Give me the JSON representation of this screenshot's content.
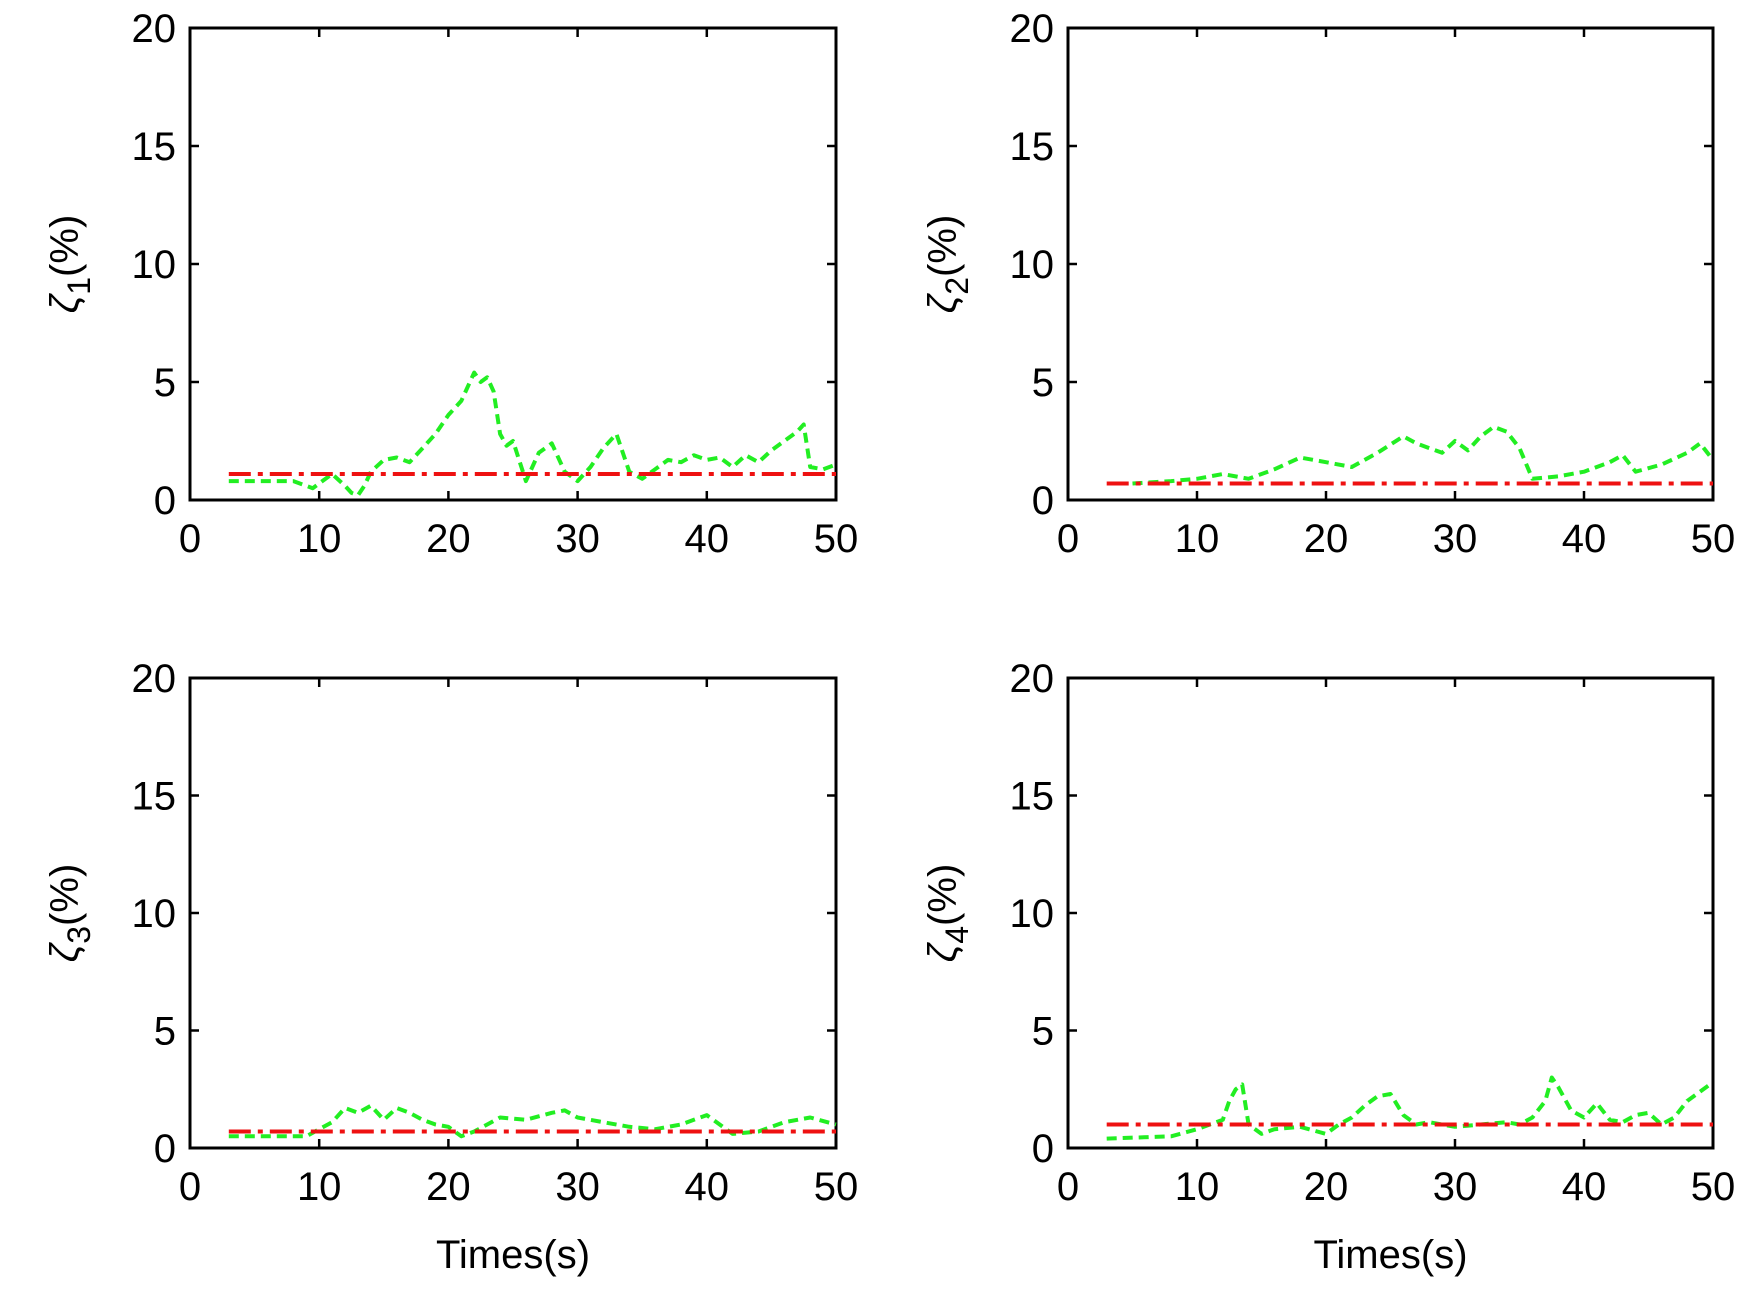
{
  "chart_data": [
    {
      "type": "line",
      "ylabel": "ζ1(%)",
      "ylabel_symbol": "ζ",
      "ylabel_sub": "1",
      "ylabel_unit": "(%)",
      "xlabel": "",
      "xlim": [
        0,
        50
      ],
      "ylim": [
        0,
        20
      ],
      "xticks": [
        0,
        10,
        20,
        30,
        40,
        50
      ],
      "yticks": [
        0,
        5,
        10,
        15,
        20
      ],
      "grid": false,
      "series": [
        {
          "color": "#22ee22",
          "style": "dashed",
          "x": [
            3,
            8,
            9.5,
            11,
            12,
            12.5,
            13,
            13.5,
            14,
            15,
            16,
            17,
            18,
            19,
            20,
            21,
            22,
            22.5,
            23,
            23.5,
            24,
            24.5,
            25,
            26,
            27,
            28,
            29,
            30,
            31,
            32,
            33,
            34,
            35,
            36,
            37,
            38,
            39,
            40,
            41,
            42,
            43,
            44,
            45,
            46,
            47,
            47.5,
            48,
            49,
            50
          ],
          "y": [
            0.8,
            0.8,
            0.5,
            1.1,
            0.6,
            0.3,
            0.2,
            0.6,
            1.2,
            1.7,
            1.8,
            1.6,
            2.2,
            2.8,
            3.6,
            4.2,
            5.4,
            5.0,
            5.2,
            4.6,
            2.8,
            2.3,
            2.5,
            0.8,
            2.0,
            2.4,
            1.2,
            0.8,
            1.4,
            2.2,
            2.8,
            1.2,
            0.9,
            1.3,
            1.7,
            1.6,
            1.9,
            1.7,
            1.8,
            1.4,
            1.9,
            1.6,
            2.1,
            2.5,
            2.9,
            3.2,
            1.4,
            1.3,
            1.5
          ]
        },
        {
          "color": "#ee1111",
          "style": "dashdot",
          "x": [
            3,
            50
          ],
          "y": [
            1.1,
            1.1
          ]
        }
      ]
    },
    {
      "type": "line",
      "ylabel": "ζ2(%)",
      "ylabel_symbol": "ζ",
      "ylabel_sub": "2",
      "ylabel_unit": "(%)",
      "xlabel": "",
      "xlim": [
        0,
        50
      ],
      "ylim": [
        0,
        20
      ],
      "xticks": [
        0,
        10,
        20,
        30,
        40,
        50
      ],
      "yticks": [
        0,
        5,
        10,
        15,
        20
      ],
      "grid": false,
      "series": [
        {
          "color": "#22ee22",
          "style": "dashed",
          "x": [
            5,
            8,
            10,
            12,
            14,
            16,
            18,
            20,
            22,
            24,
            26,
            27,
            28,
            29,
            30,
            31,
            32,
            33,
            34,
            35,
            36,
            38,
            40,
            42,
            43,
            44,
            46,
            48,
            49,
            50
          ],
          "y": [
            0.7,
            0.8,
            0.9,
            1.1,
            0.9,
            1.3,
            1.8,
            1.6,
            1.4,
            2.0,
            2.7,
            2.4,
            2.2,
            2.0,
            2.5,
            2.1,
            2.7,
            3.1,
            2.9,
            2.2,
            0.9,
            1.0,
            1.2,
            1.6,
            1.9,
            1.2,
            1.5,
            2.0,
            2.4,
            1.7
          ]
        },
        {
          "color": "#ee1111",
          "style": "dashdot",
          "x": [
            3,
            50
          ],
          "y": [
            0.7,
            0.7
          ]
        }
      ]
    },
    {
      "type": "line",
      "ylabel": "ζ3(%)",
      "ylabel_symbol": "ζ",
      "ylabel_sub": "3",
      "ylabel_unit": "(%)",
      "xlabel": "Times(s)",
      "xlim": [
        0,
        50
      ],
      "ylim": [
        0,
        20
      ],
      "xticks": [
        0,
        10,
        20,
        30,
        40,
        50
      ],
      "yticks": [
        0,
        5,
        10,
        15,
        20
      ],
      "grid": false,
      "series": [
        {
          "color": "#22ee22",
          "style": "dashed",
          "x": [
            3,
            9,
            10,
            11,
            12,
            13,
            14,
            15,
            16,
            17,
            18,
            19,
            20,
            21,
            22,
            23,
            24,
            26,
            28,
            29,
            30,
            32,
            34,
            36,
            38,
            40,
            42,
            44,
            46,
            48,
            50
          ],
          "y": [
            0.5,
            0.5,
            0.8,
            1.1,
            1.7,
            1.5,
            1.8,
            1.2,
            1.7,
            1.5,
            1.2,
            1.0,
            0.9,
            0.5,
            0.7,
            1.0,
            1.3,
            1.2,
            1.5,
            1.6,
            1.3,
            1.1,
            0.9,
            0.8,
            1.0,
            1.4,
            0.6,
            0.7,
            1.1,
            1.3,
            1.0
          ]
        },
        {
          "color": "#ee1111",
          "style": "dashdot",
          "x": [
            3,
            50
          ],
          "y": [
            0.7,
            0.7
          ]
        }
      ]
    },
    {
      "type": "line",
      "ylabel": "ζ4(%)",
      "ylabel_symbol": "ζ",
      "ylabel_sub": "4",
      "ylabel_unit": "(%)",
      "xlabel": "Times(s)",
      "xlim": [
        0,
        50
      ],
      "ylim": [
        0,
        20
      ],
      "xticks": [
        0,
        10,
        20,
        30,
        40,
        50
      ],
      "yticks": [
        0,
        5,
        10,
        15,
        20
      ],
      "grid": false,
      "series": [
        {
          "color": "#22ee22",
          "style": "dashed",
          "x": [
            3,
            8,
            10,
            12,
            12.5,
            13,
            13.5,
            14,
            15,
            16,
            18,
            20,
            21,
            22,
            23,
            24,
            25,
            26,
            27,
            28,
            30,
            32,
            34,
            35,
            36,
            37,
            37.5,
            38,
            39,
            40,
            41,
            42,
            43,
            44,
            45,
            46,
            47,
            48,
            49,
            50
          ],
          "y": [
            0.4,
            0.5,
            0.8,
            1.2,
            2.0,
            2.5,
            2.7,
            1.0,
            0.6,
            0.8,
            0.9,
            0.6,
            1.0,
            1.3,
            1.8,
            2.2,
            2.3,
            1.4,
            1.0,
            1.1,
            0.9,
            1.0,
            1.1,
            1.0,
            1.3,
            2.0,
            3.0,
            2.6,
            1.6,
            1.3,
            1.9,
            1.2,
            1.1,
            1.4,
            1.5,
            1.0,
            1.3,
            2.0,
            2.4,
            2.8
          ]
        },
        {
          "color": "#ee1111",
          "style": "dashdot",
          "x": [
            3,
            50
          ],
          "y": [
            1.0,
            1.0
          ]
        }
      ]
    }
  ]
}
